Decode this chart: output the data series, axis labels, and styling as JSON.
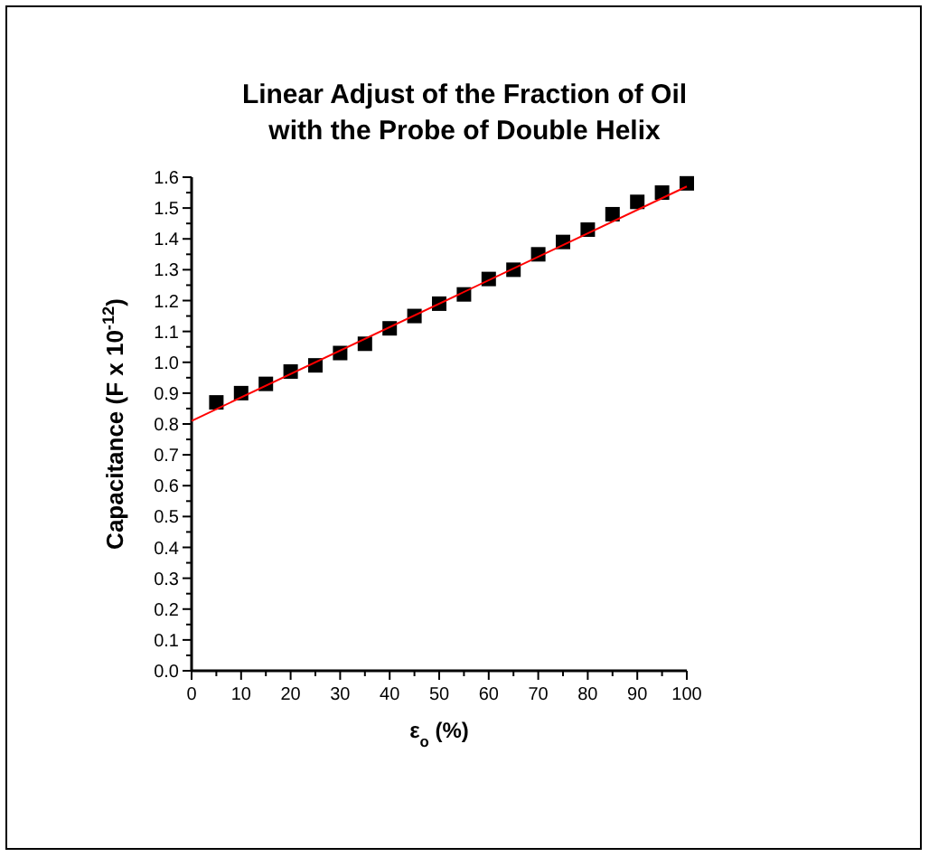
{
  "chart_data": {
    "type": "scatter",
    "title": "Linear Adjust of the Fraction of Oil with the Probe of Double Helix",
    "xlabel": "ε$_{o}$ (%)",
    "ylabel": "Capacitance (F x 10$^{-12}$)",
    "xlim": [
      0,
      100
    ],
    "ylim": [
      0,
      1.6
    ],
    "xticks": [
      0,
      {
        "value": 5,
        "label": null
      },
      10,
      {
        "value": 15,
        "label": null
      },
      20,
      {
        "value": 25,
        "label": null
      },
      30,
      {
        "value": 35,
        "label": null
      },
      40,
      {
        "value": 45,
        "label": null
      },
      50,
      {
        "value": 55,
        "label": null
      },
      60,
      {
        "value": 65,
        "label": null
      },
      70,
      {
        "value": 75,
        "label": null
      },
      80,
      {
        "value": 85,
        "label": null
      },
      90,
      {
        "value": 95,
        "label": null
      },
      100
    ],
    "yticks": [
      {
        "value": 0,
        "label": "0.0"
      },
      {
        "value": 0.05,
        "label": null
      },
      0.1,
      {
        "value": 0.15,
        "label": null
      },
      0.2,
      {
        "value": 0.25,
        "label": null
      },
      0.3,
      {
        "value": 0.35,
        "label": null
      },
      0.4,
      {
        "value": 0.45,
        "label": null
      },
      0.5,
      {
        "value": 0.55,
        "label": null
      },
      0.6,
      {
        "value": 0.65,
        "label": null
      },
      0.7,
      {
        "value": 0.75,
        "label": null
      },
      0.8,
      {
        "value": 0.85,
        "label": null
      },
      0.9,
      {
        "value": 0.95,
        "label": null
      },
      {
        "value": 1,
        "label": "1.0"
      },
      {
        "value": 1.05,
        "label": null
      },
      1.1,
      {
        "value": 1.15,
        "label": null
      },
      1.2,
      {
        "value": 1.25,
        "label": null
      },
      1.3,
      {
        "value": 1.35,
        "label": null
      },
      1.4,
      {
        "value": 1.45,
        "label": null
      },
      1.5,
      {
        "value": 1.55,
        "label": null
      },
      1.6
    ],
    "grid": false,
    "series": [
      {
        "marker": "square",
        "color": "#000000",
        "x": [
          5,
          10,
          15,
          20,
          25,
          30,
          35,
          40,
          45,
          50,
          55,
          60,
          65,
          70,
          75,
          80,
          85,
          90,
          95,
          100
        ],
        "values": [
          0.87,
          0.9,
          0.93,
          0.97,
          0.99,
          1.03,
          1.06,
          1.11,
          1.15,
          1.19,
          1.22,
          1.27,
          1.3,
          1.35,
          1.39,
          1.43,
          1.48,
          1.52,
          1.55,
          1.58
        ]
      },
      {
        "type": "line",
        "marker": "none",
        "color": "#ff0000",
        "x": [
          0,
          100
        ],
        "values": [
          0.81,
          1.57
        ]
      }
    ]
  }
}
